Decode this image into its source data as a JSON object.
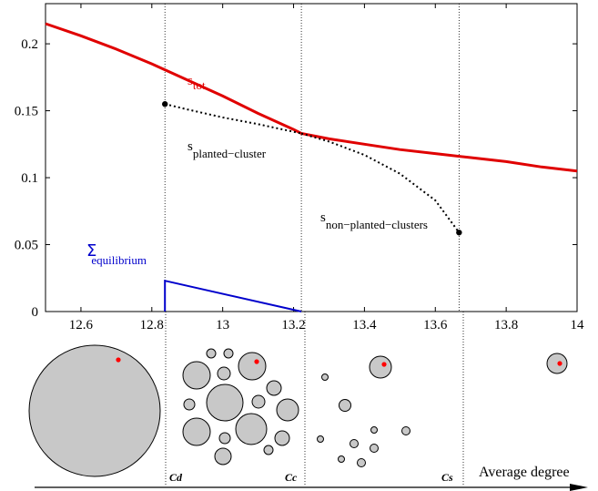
{
  "chart_data": {
    "type": "line",
    "xlim": [
      12.5,
      14.0
    ],
    "ylim": [
      0,
      0.23
    ],
    "x_ticks": [
      "12.6",
      "12.8",
      "13",
      "13.2",
      "13.4",
      "13.6",
      "13.8",
      "14"
    ],
    "y_ticks": [
      "0",
      "0.05",
      "0.1",
      "0.15",
      "0.2"
    ],
    "grid": false,
    "vertical_lines": [
      12.837,
      13.222,
      13.667
    ],
    "series": [
      {
        "name": "s_tot",
        "label_main": "s",
        "label_sub": "tot",
        "color": "#e00000",
        "style": "solid",
        "x": [
          12.5,
          12.6,
          12.7,
          12.8,
          12.9,
          13.0,
          13.1,
          13.2,
          13.222,
          13.3,
          13.4,
          13.5,
          13.6,
          13.7,
          13.8,
          13.9,
          14.0
        ],
        "y": [
          0.215,
          0.206,
          0.196,
          0.185,
          0.173,
          0.161,
          0.148,
          0.136,
          0.133,
          0.129,
          0.125,
          0.121,
          0.118,
          0.115,
          0.112,
          0.108,
          0.105
        ]
      },
      {
        "name": "s_planted-cluster",
        "label_main": "s",
        "label_sub": "planted−cluster",
        "color": "#000000",
        "style": "dotted",
        "x": [
          12.837,
          12.9,
          13.0,
          13.1,
          13.222
        ],
        "y": [
          0.155,
          0.151,
          0.145,
          0.14,
          0.133
        ]
      },
      {
        "name": "s_non-planted-clusters",
        "label_main": "s",
        "label_sub": "non−planted−clusters",
        "color": "#000000",
        "style": "dotted",
        "x": [
          13.222,
          13.3,
          13.4,
          13.5,
          13.6,
          13.667
        ],
        "y": [
          0.133,
          0.127,
          0.117,
          0.103,
          0.083,
          0.059
        ]
      },
      {
        "name": "Sigma_equilibrium",
        "label_main": "Σ",
        "label_sub": "equilibrium",
        "color": "#0000cc",
        "style": "solid",
        "x": [
          12.837,
          12.837,
          13.222
        ],
        "y": [
          0.0,
          0.023,
          0.0
        ]
      }
    ],
    "points": [
      {
        "x": 12.837,
        "y": 0.155
      },
      {
        "x": 13.667,
        "y": 0.059
      }
    ]
  },
  "lower_panel": {
    "phase_labels": [
      "Cd",
      "Cc",
      "Cs"
    ],
    "arrow_label": "Average degree",
    "circle_fill": "#c8c8c8",
    "planted_color": "#ff0000"
  }
}
